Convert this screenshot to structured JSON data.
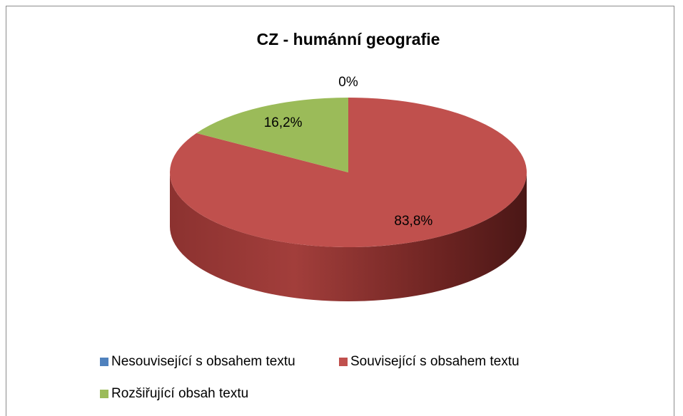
{
  "chart_data": {
    "type": "pie3d",
    "title": "CZ - humánní geografie",
    "categories": [
      "Nesouvisející s obsahem textu",
      "Související s obsahem textu",
      "Rozšiřující obsah textu"
    ],
    "values": [
      0,
      83.8,
      16.2
    ],
    "value_labels": [
      "0%",
      "83,8%",
      "16,2%"
    ],
    "colors": [
      "#4f81bd",
      "#c0504d",
      "#9bbb59"
    ],
    "legend": "bottom"
  }
}
